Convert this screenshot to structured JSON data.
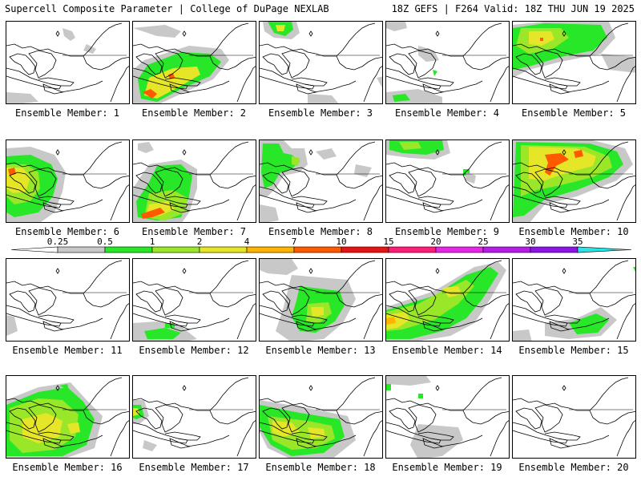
{
  "header": {
    "title": "Supercell Composite Parameter | College of DuPage NEXLAB",
    "run": "18Z GEFS | F264 Valid: 18Z THU JUN 19 2025"
  },
  "legend": {
    "ticks": [
      "0.25",
      "0.5",
      "1",
      "2",
      "4",
      "7",
      "10",
      "15",
      "20",
      "25",
      "30",
      "35"
    ],
    "colors": [
      "#c8c8c8",
      "#28e628",
      "#9ae628",
      "#e6e628",
      "#ffb400",
      "#ff5a00",
      "#e61414",
      "#ff1e78",
      "#e628e6",
      "#b41ee6",
      "#8c14e6",
      "#b45ae6",
      "#28e6e6"
    ]
  },
  "members": [
    {
      "label": "Ensemble Member: 1"
    },
    {
      "label": "Ensemble Member: 2"
    },
    {
      "label": "Ensemble Member: 3"
    },
    {
      "label": "Ensemble Member: 4"
    },
    {
      "label": "Ensemble Member: 5"
    },
    {
      "label": "Ensemble Member: 6"
    },
    {
      "label": "Ensemble Member: 7"
    },
    {
      "label": "Ensemble Member: 8"
    },
    {
      "label": "Ensemble Member: 9"
    },
    {
      "label": "Ensemble Member: 10"
    },
    {
      "label": "Ensemble Member: 11"
    },
    {
      "label": "Ensemble Member: 12"
    },
    {
      "label": "Ensemble Member: 13"
    },
    {
      "label": "Ensemble Member: 14"
    },
    {
      "label": "Ensemble Member: 15"
    },
    {
      "label": "Ensemble Member: 16"
    },
    {
      "label": "Ensemble Member: 17"
    },
    {
      "label": "Ensemble Member: 18"
    },
    {
      "label": "Ensemble Member: 19"
    },
    {
      "label": "Ensemble Member: 20"
    }
  ]
}
